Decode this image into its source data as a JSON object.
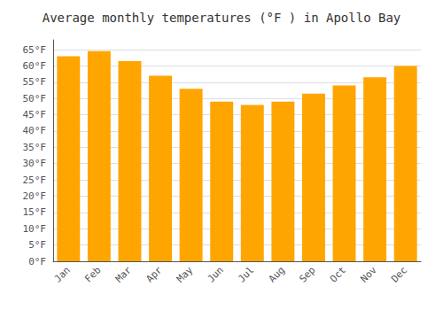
{
  "chart_data": {
    "type": "bar",
    "title": "Average monthly temperatures (°F ) in Apollo Bay",
    "categories": [
      "Jan",
      "Feb",
      "Mar",
      "Apr",
      "May",
      "Jun",
      "Jul",
      "Aug",
      "Sep",
      "Oct",
      "Nov",
      "Dec"
    ],
    "values": [
      63,
      64.5,
      61.5,
      57,
      53,
      49,
      48,
      49,
      51.5,
      54,
      56.5,
      60
    ],
    "color": "#FFA500",
    "ylim": [
      0,
      68
    ],
    "yticks": [
      {
        "value": 0,
        "label": "0°F"
      },
      {
        "value": 5,
        "label": "5°F"
      },
      {
        "value": 10,
        "label": "10°F"
      },
      {
        "value": 15,
        "label": "15°F"
      },
      {
        "value": 20,
        "label": "20°F"
      },
      {
        "value": 25,
        "label": "25°F"
      },
      {
        "value": 30,
        "label": "30°F"
      },
      {
        "value": 35,
        "label": "35°F"
      },
      {
        "value": 40,
        "label": "40°F"
      },
      {
        "value": 45,
        "label": "45°F"
      },
      {
        "value": 50,
        "label": "50°F"
      },
      {
        "value": 55,
        "label": "55°F"
      },
      {
        "value": 60,
        "label": "60°F"
      },
      {
        "value": 65,
        "label": "65°F"
      }
    ],
    "grid": true
  }
}
